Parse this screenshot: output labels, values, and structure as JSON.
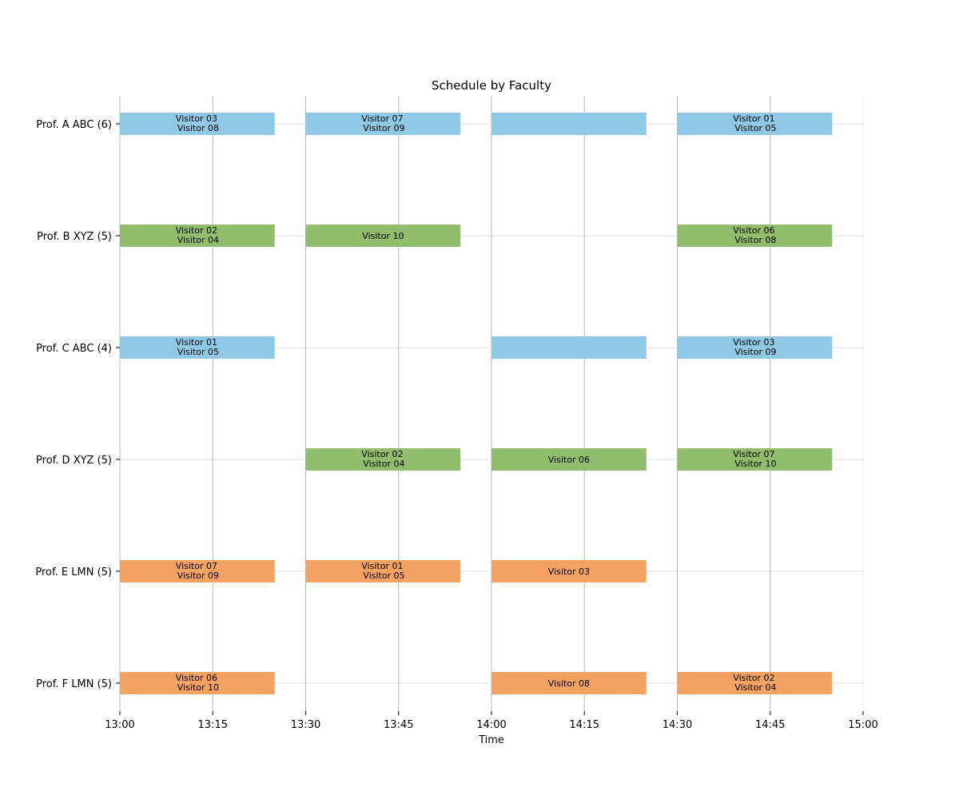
{
  "chart_data": {
    "type": "bar",
    "title": "Schedule by Faculty",
    "xlabel": "Time",
    "ylabel": "",
    "xlim": [
      "13:00",
      "15:00"
    ],
    "x_ticks": [
      "13:00",
      "13:15",
      "13:30",
      "13:45",
      "14:00",
      "14:15",
      "14:30",
      "14:45",
      "15:00"
    ],
    "faculty": [
      {
        "label": "Prof. A ABC (6)",
        "color": "#8fc9e6"
      },
      {
        "label": "Prof. B XYZ (5)",
        "color": "#90be6d"
      },
      {
        "label": "Prof. C ABC (4)",
        "color": "#8fc9e6"
      },
      {
        "label": "Prof. D XYZ (5)",
        "color": "#90be6d"
      },
      {
        "label": "Prof. E LMN (5)",
        "color": "#f4a261"
      },
      {
        "label": "Prof. F LMN (5)",
        "color": "#f4a261"
      }
    ],
    "slots": [
      {
        "faculty": 0,
        "start": "13:00",
        "end": "13:25",
        "visitors": [
          "Visitor 03",
          "Visitor 08"
        ]
      },
      {
        "faculty": 0,
        "start": "13:30",
        "end": "13:55",
        "visitors": [
          "Visitor 07",
          "Visitor 09"
        ]
      },
      {
        "faculty": 0,
        "start": "14:00",
        "end": "14:25",
        "visitors": []
      },
      {
        "faculty": 0,
        "start": "14:30",
        "end": "14:55",
        "visitors": [
          "Visitor 01",
          "Visitor 05"
        ]
      },
      {
        "faculty": 1,
        "start": "13:00",
        "end": "13:25",
        "visitors": [
          "Visitor 02",
          "Visitor 04"
        ]
      },
      {
        "faculty": 1,
        "start": "13:30",
        "end": "13:55",
        "visitors": [
          "Visitor 10"
        ]
      },
      {
        "faculty": 1,
        "start": "14:30",
        "end": "14:55",
        "visitors": [
          "Visitor 06",
          "Visitor 08"
        ]
      },
      {
        "faculty": 2,
        "start": "13:00",
        "end": "13:25",
        "visitors": [
          "Visitor 01",
          "Visitor 05"
        ]
      },
      {
        "faculty": 2,
        "start": "14:00",
        "end": "14:25",
        "visitors": []
      },
      {
        "faculty": 2,
        "start": "14:30",
        "end": "14:55",
        "visitors": [
          "Visitor 03",
          "Visitor 09"
        ]
      },
      {
        "faculty": 3,
        "start": "13:30",
        "end": "13:55",
        "visitors": [
          "Visitor 02",
          "Visitor 04"
        ]
      },
      {
        "faculty": 3,
        "start": "14:00",
        "end": "14:25",
        "visitors": [
          "Visitor 06"
        ]
      },
      {
        "faculty": 3,
        "start": "14:30",
        "end": "14:55",
        "visitors": [
          "Visitor 07",
          "Visitor 10"
        ]
      },
      {
        "faculty": 4,
        "start": "13:00",
        "end": "13:25",
        "visitors": [
          "Visitor 07",
          "Visitor 09"
        ]
      },
      {
        "faculty": 4,
        "start": "13:30",
        "end": "13:55",
        "visitors": [
          "Visitor 01",
          "Visitor 05"
        ]
      },
      {
        "faculty": 4,
        "start": "14:00",
        "end": "14:25",
        "visitors": [
          "Visitor 03"
        ]
      },
      {
        "faculty": 5,
        "start": "13:00",
        "end": "13:25",
        "visitors": [
          "Visitor 06",
          "Visitor 10"
        ]
      },
      {
        "faculty": 5,
        "start": "14:00",
        "end": "14:25",
        "visitors": [
          "Visitor 08"
        ]
      },
      {
        "faculty": 5,
        "start": "14:30",
        "end": "14:55",
        "visitors": [
          "Visitor 02",
          "Visitor 04"
        ]
      }
    ],
    "vertical_grid": true,
    "horizontal_grid": true,
    "legend": "none"
  }
}
